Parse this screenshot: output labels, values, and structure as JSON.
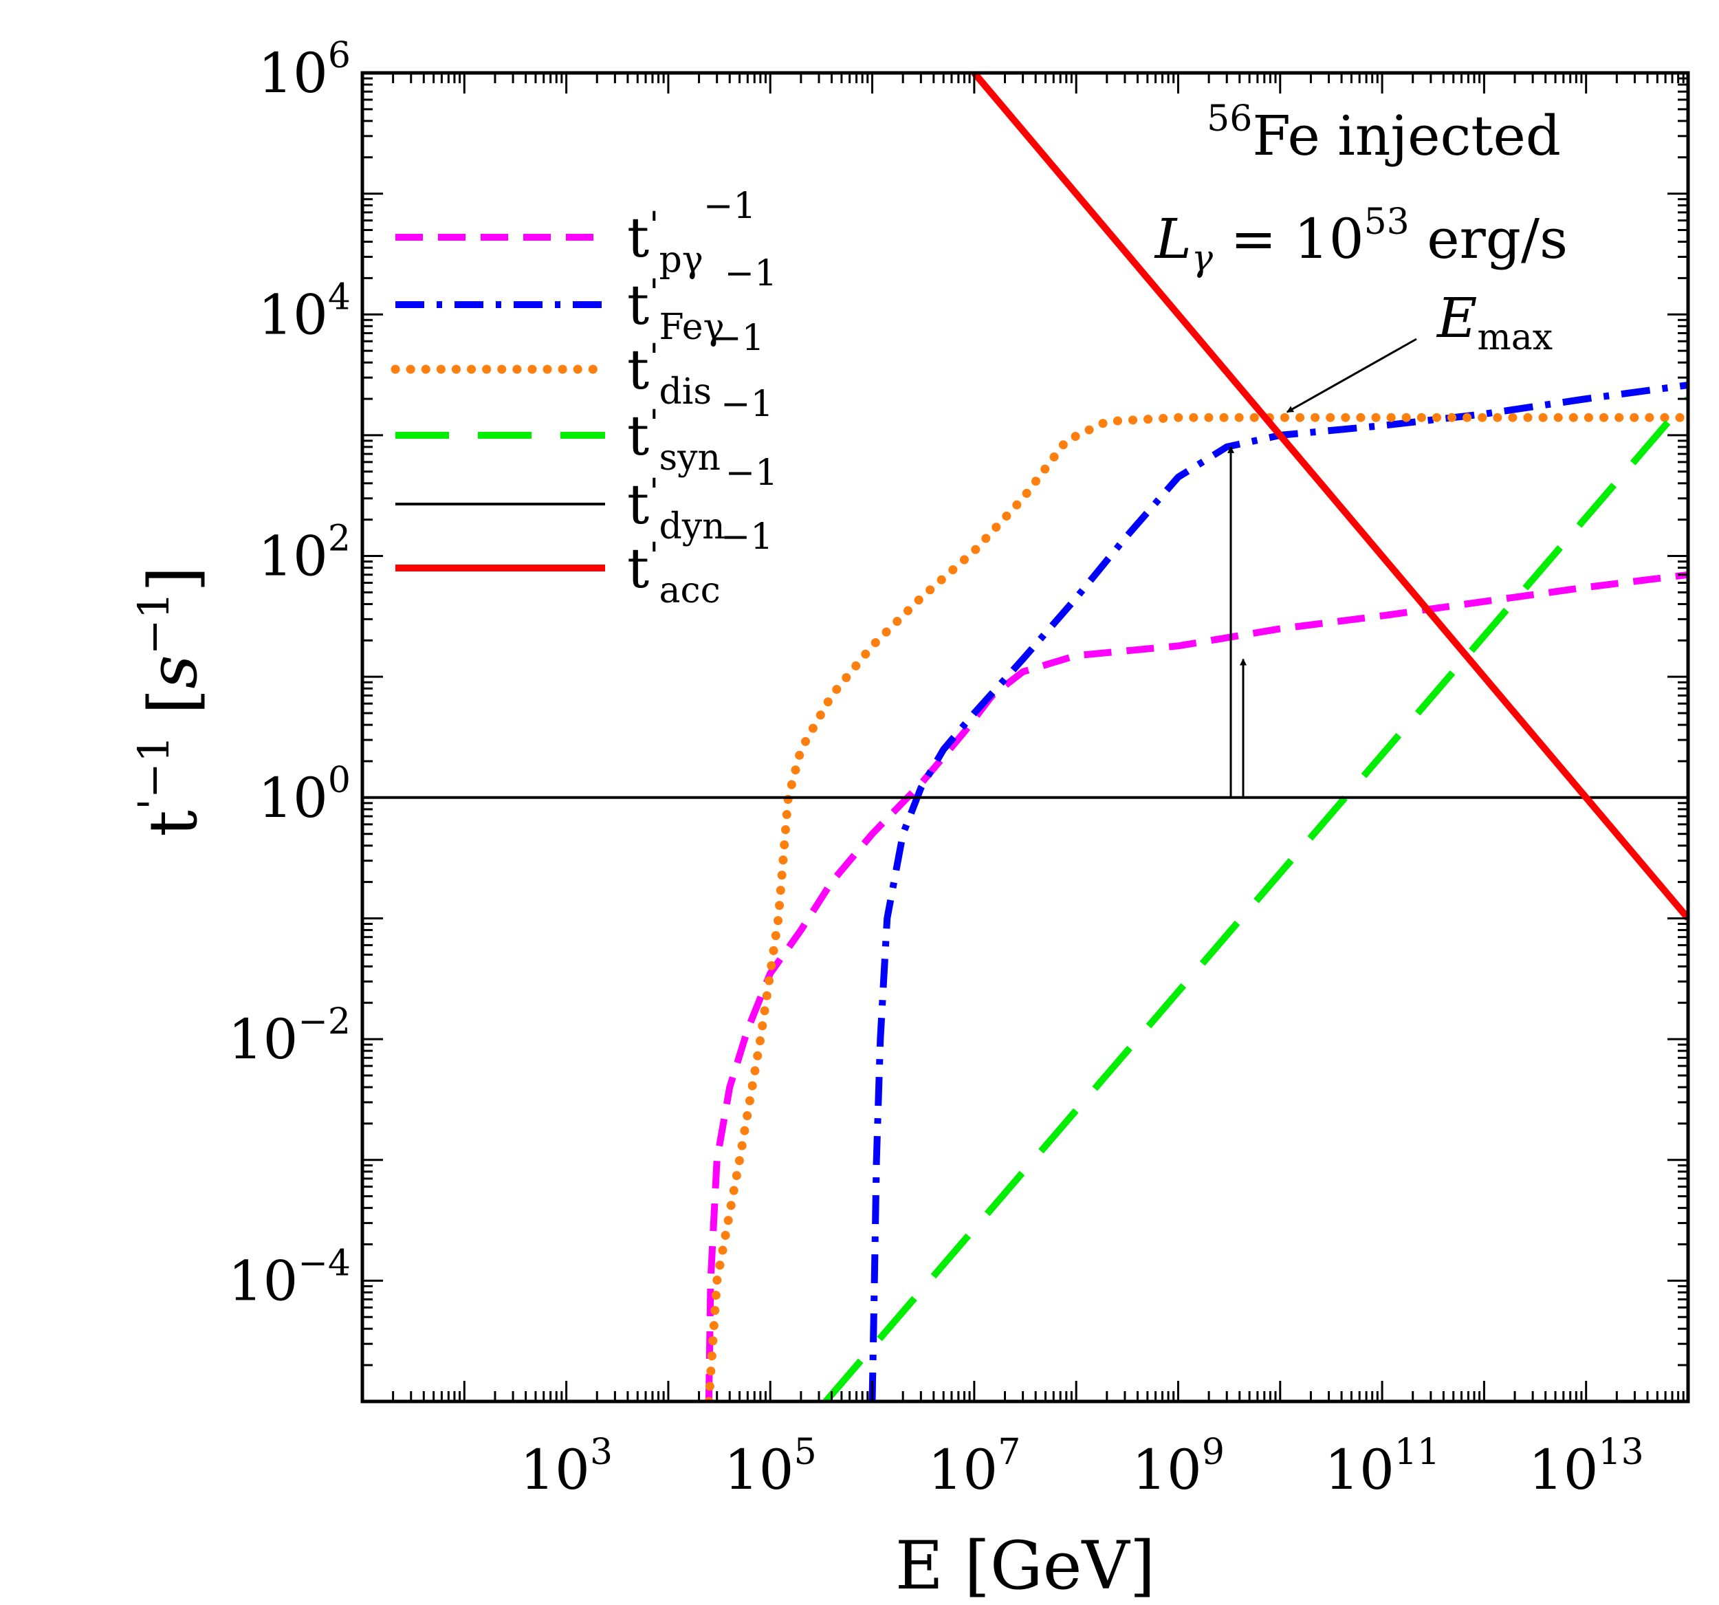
{
  "chart_data": {
    "type": "line",
    "title": "",
    "xlabel": "E [GeV]",
    "ylabel": "t'^{-1} [s^{-1}]",
    "xscale": "log",
    "yscale": "log",
    "xlim": [
      10,
      100000000000000.0
    ],
    "ylim": [
      1e-05,
      1000000.0
    ],
    "x_tick_labels": [
      {
        "base": "10",
        "exp": "3",
        "value": 1000.0
      },
      {
        "base": "10",
        "exp": "5",
        "value": 100000.0
      },
      {
        "base": "10",
        "exp": "7",
        "value": 10000000.0
      },
      {
        "base": "10",
        "exp": "9",
        "value": 1000000000.0
      },
      {
        "base": "10",
        "exp": "11",
        "value": 100000000000.0
      },
      {
        "base": "10",
        "exp": "13",
        "value": 10000000000000.0
      }
    ],
    "y_tick_labels": [
      {
        "base": "10",
        "exp": "−4",
        "value": 0.0001
      },
      {
        "base": "10",
        "exp": "−2",
        "value": 0.01
      },
      {
        "base": "10",
        "exp": "0",
        "value": 1
      },
      {
        "base": "10",
        "exp": "2",
        "value": 100.0
      },
      {
        "base": "10",
        "exp": "4",
        "value": 10000.0
      },
      {
        "base": "10",
        "exp": "6",
        "value": 1000000.0
      }
    ],
    "legend_position": "top-left",
    "series": [
      {
        "key": "pg",
        "sub": "pγ",
        "color": "#ff00ff",
        "dash": "dash",
        "points": [
          [
            25000.0,
            1e-05
          ],
          [
            26000.0,
            0.0001
          ],
          [
            30000.0,
            0.001
          ],
          [
            40000.0,
            0.004
          ],
          [
            60000.0,
            0.012
          ],
          [
            100000.0,
            0.035
          ],
          [
            200000.0,
            0.08
          ],
          [
            400000.0,
            0.2
          ],
          [
            1000000.0,
            0.5
          ],
          [
            3000000.0,
            1.3
          ],
          [
            8000000.0,
            3.5
          ],
          [
            15000000.0,
            7
          ],
          [
            30000000.0,
            11
          ],
          [
            100000000.0,
            15
          ],
          [
            1000000000.0,
            18
          ],
          [
            10000000000.0,
            25
          ],
          [
            100000000000.0,
            32
          ],
          [
            1000000000000.0,
            42
          ],
          [
            10000000000000.0,
            55
          ],
          [
            100000000000000.0,
            70
          ]
        ]
      },
      {
        "key": "feg",
        "sub": "Feγ",
        "color": "#0000ff",
        "dash": "dashdot",
        "points": [
          [
            1000000.0,
            1e-05
          ],
          [
            1050000.0,
            0.0001
          ],
          [
            1100000.0,
            0.001
          ],
          [
            1200000.0,
            0.01
          ],
          [
            1400000.0,
            0.1
          ],
          [
            2000000.0,
            0.5
          ],
          [
            3000000.0,
            1.2
          ],
          [
            5000000.0,
            2.5
          ],
          [
            10000000.0,
            5
          ],
          [
            30000000.0,
            14
          ],
          [
            100000000.0,
            45
          ],
          [
            300000000.0,
            140
          ],
          [
            1000000000.0,
            450
          ],
          [
            3000000000.0,
            800
          ],
          [
            10000000000.0,
            1000
          ],
          [
            100000000000.0,
            1200
          ],
          [
            1000000000000.0,
            1500
          ],
          [
            10000000000000.0,
            2000
          ],
          [
            100000000000000.0,
            2600
          ]
        ]
      },
      {
        "key": "dis",
        "sub": "dis",
        "color": "#ff7f0e",
        "dash": "dot",
        "points": [
          [
            25000.0,
            1e-05
          ],
          [
            30000.0,
            0.0001
          ],
          [
            50000.0,
            0.001
          ],
          [
            80000.0,
            0.01
          ],
          [
            120000.0,
            0.1
          ],
          [
            150000.0,
            1
          ],
          [
            200000.0,
            2.5
          ],
          [
            400000.0,
            7
          ],
          [
            1000000.0,
            18
          ],
          [
            3000000.0,
            45
          ],
          [
            10000000.0,
            110
          ],
          [
            30000000.0,
            300
          ],
          [
            80000000.0,
            900
          ],
          [
            200000000.0,
            1300
          ],
          [
            1000000000.0,
            1400
          ],
          [
            100000000000000.0,
            1400
          ]
        ]
      },
      {
        "key": "syn",
        "sub": "syn",
        "color": "#00ee00",
        "dash": "longdash",
        "points": [
          [
            350000.0,
            1e-05
          ],
          [
            100000000000000.0,
            2000
          ]
        ]
      },
      {
        "key": "dyn",
        "sub": "dyn",
        "color": "#000000",
        "dash": "solid",
        "points": [
          [
            10,
            1
          ],
          [
            100000000000000.0,
            1
          ]
        ]
      },
      {
        "key": "acc",
        "sub": "acc",
        "color": "#ff0000",
        "dash": "solid",
        "points": [
          [
            10000000.0,
            1000000.0
          ],
          [
            100000000000000.0,
            0.1
          ]
        ]
      }
    ],
    "annotations": {
      "source": {
        "sup": "56",
        "text": "Fe injected"
      },
      "luminosity": {
        "var": "L",
        "sub": "γ",
        "text": " = 10",
        "exp": "53",
        "unit": " erg/s"
      },
      "emax": {
        "var": "E",
        "sub": "max",
        "E": 10000000000.0,
        "t": 1400
      }
    }
  }
}
